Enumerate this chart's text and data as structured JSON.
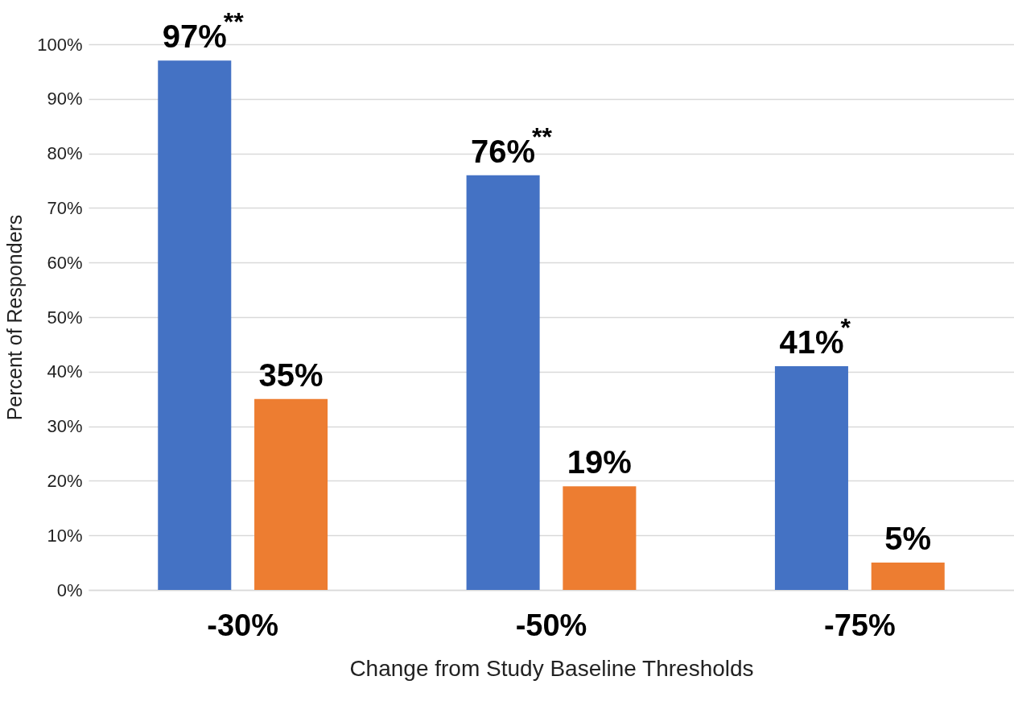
{
  "chart_data": {
    "type": "bar",
    "xlabel": "Change from Study Baseline Thresholds",
    "ylabel": "Percent of Responders",
    "categories": [
      "-30%",
      "-50%",
      "-75%"
    ],
    "series": [
      {
        "color": "#4472c4",
        "values": [
          97,
          76,
          41
        ],
        "value_labels": [
          "97%",
          "76%",
          "41%"
        ]
      },
      {
        "color": "#ed7d31",
        "values": [
          35,
          19,
          5
        ],
        "value_labels": [
          "35%",
          "19%",
          "5%"
        ]
      }
    ],
    "ylim": [
      0,
      100
    ],
    "yticks": [
      {
        "value": 0,
        "label": "0%"
      },
      {
        "value": 10,
        "label": "10%"
      },
      {
        "value": 20,
        "label": "20%"
      },
      {
        "value": 30,
        "label": "30%"
      },
      {
        "value": 40,
        "label": "40%"
      },
      {
        "value": 50,
        "label": "50%"
      },
      {
        "value": 60,
        "label": "60%"
      },
      {
        "value": 70,
        "label": "70%"
      },
      {
        "value": 80,
        "label": "80%"
      },
      {
        "value": 90,
        "label": "90%"
      },
      {
        "value": 100,
        "label": "100%"
      }
    ],
    "grid": "y",
    "annotations": [
      "**",
      "**",
      "*"
    ]
  }
}
